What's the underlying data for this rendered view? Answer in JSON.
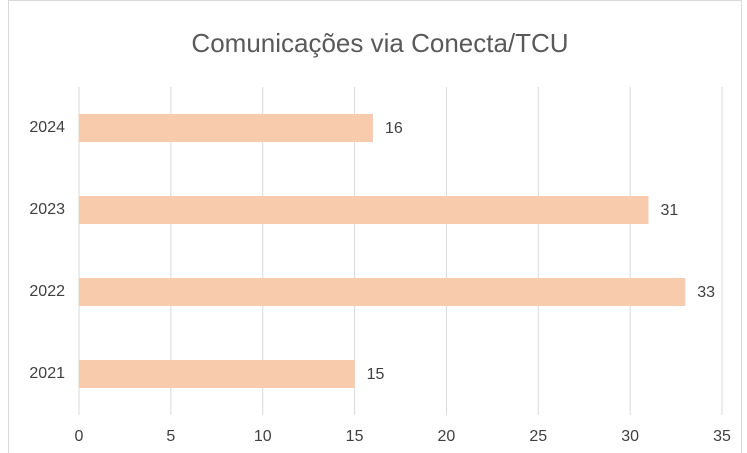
{
  "chart_data": {
    "type": "bar",
    "orientation": "horizontal",
    "title": "Comunicações via Conecta/TCU",
    "categories": [
      "2024",
      "2023",
      "2022",
      "2021"
    ],
    "values": [
      16,
      31,
      33,
      15
    ],
    "color": "#f8cbad",
    "xlim": [
      0,
      35
    ],
    "xticks": [
      0,
      5,
      10,
      15,
      20,
      25,
      30,
      35
    ],
    "grid": true
  }
}
